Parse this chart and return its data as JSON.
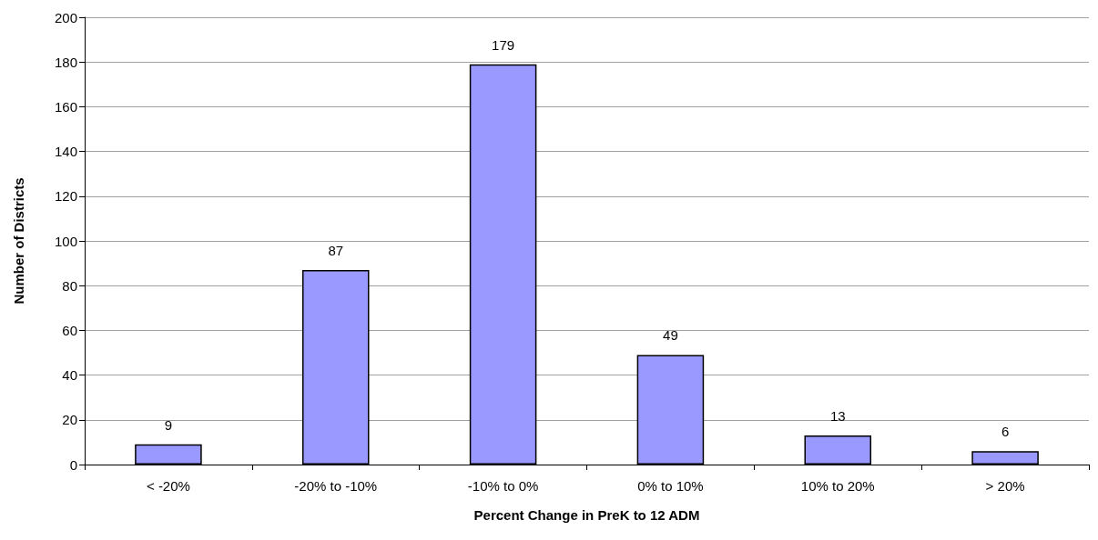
{
  "chart_data": {
    "type": "bar",
    "xlabel": "Percent Change in PreK to 12 ADM",
    "ylabel": "Number of Districts",
    "categories": [
      "< -20%",
      "-20% to -10%",
      "-10% to 0%",
      "0% to 10%",
      "10% to 20%",
      "> 20%"
    ],
    "values": [
      9,
      87,
      179,
      49,
      13,
      6
    ],
    "color": "#9999ff",
    "ylim": [
      0,
      200
    ],
    "yticks": [
      0,
      20,
      40,
      60,
      80,
      100,
      120,
      140,
      160,
      180,
      200
    ],
    "grid": "y",
    "data_labels": true
  }
}
